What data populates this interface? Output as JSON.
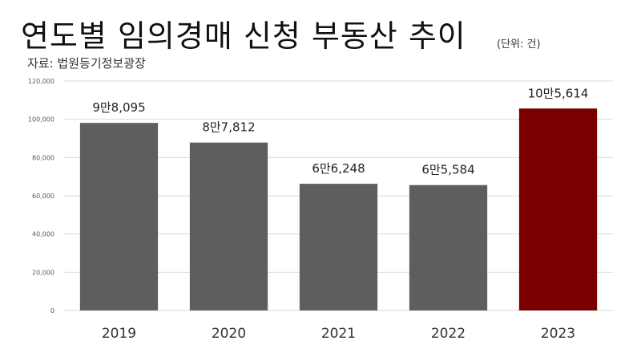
{
  "title": "연도별 임의경매 신청 부동산 추이",
  "unit": "(단위: 건)",
  "source": "자료: 법원등기정보광장",
  "colors": {
    "bar": "#5e5e5e",
    "highlight": "#7a0000",
    "grid": "#d9d9d9"
  },
  "chart_data": {
    "type": "bar",
    "categories": [
      "2019",
      "2020",
      "2021",
      "2022",
      "2023"
    ],
    "values": [
      98095,
      87812,
      66248,
      65584,
      105614
    ],
    "data_labels": [
      "9만8,095",
      "8만7,812",
      "6만6,248",
      "6만5,584",
      "10만5,614"
    ],
    "highlight_index": 4,
    "ylim": [
      0,
      120000
    ],
    "yticks": [
      0,
      20000,
      40000,
      60000,
      80000,
      100000,
      120000
    ],
    "ytick_labels": [
      "0",
      "20,000",
      "40,000",
      "60,000",
      "80,000",
      "100,000",
      "120,000"
    ],
    "grid": true,
    "legend": "none"
  }
}
